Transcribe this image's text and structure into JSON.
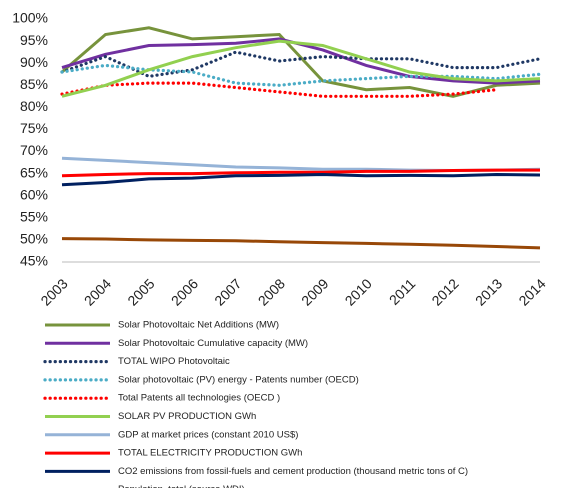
{
  "chart_data": {
    "type": "line",
    "categories": [
      "2003",
      "2004",
      "2005",
      "2006",
      "2007",
      "2008",
      "2009",
      "2010",
      "2011",
      "2012",
      "2013",
      "2014"
    ],
    "ylim": [
      45,
      100
    ],
    "yticks": [
      {
        "value": 45,
        "label": "45%"
      },
      {
        "value": 50,
        "label": "50%"
      },
      {
        "value": 55,
        "label": "55%"
      },
      {
        "value": 60,
        "label": "60%"
      },
      {
        "value": 65,
        "label": "65%"
      },
      {
        "value": 70,
        "label": "70%"
      },
      {
        "value": 75,
        "label": "75%"
      },
      {
        "value": 80,
        "label": "80%"
      },
      {
        "value": 85,
        "label": "85%"
      },
      {
        "value": 90,
        "label": "90%"
      },
      {
        "value": 95,
        "label": "95%"
      },
      {
        "value": 100,
        "label": "100%"
      }
    ],
    "grid": false,
    "series": [
      {
        "name": "Solar Photovoltaic Net Additions (MW)",
        "color": "#77933c",
        "style": "solid",
        "values": [
          88,
          96.5,
          98,
          95.5,
          96,
          96.5,
          86,
          84,
          84.5,
          82.5,
          85,
          85.5
        ]
      },
      {
        "name": "Solar Photovoltaic Cumulative capacity (MW)",
        "color": "#7030a0",
        "style": "solid",
        "values": [
          89,
          92,
          94,
          94.2,
          94.5,
          95.5,
          93,
          89.5,
          87,
          86,
          85.5,
          86
        ]
      },
      {
        "name": "TOTAL WIPO Photovoltaic",
        "color": "#1f3864",
        "style": "dotted",
        "values": [
          88,
          91.5,
          87,
          88.5,
          92.5,
          90.5,
          91.5,
          91,
          91,
          89,
          89,
          91
        ]
      },
      {
        "name": "Solar photovoltaic (PV) energy -  Patents number (OECD)",
        "color": "#4bacc6",
        "style": "dotted",
        "values": [
          88,
          89.5,
          88.5,
          88,
          85.5,
          85,
          86,
          86.5,
          87,
          87,
          86.5,
          87.5
        ]
      },
      {
        "name": "Total Patents all technologies (OECD )",
        "color": "#ff0000",
        "style": "dotted",
        "values": [
          83,
          85,
          85.5,
          85.5,
          84.5,
          83.5,
          82.5,
          82.5,
          82.5,
          83,
          84,
          null
        ]
      },
      {
        "name": "SOLAR PV PRODUCTION GWh",
        "color": "#92d050",
        "style": "solid",
        "values": [
          82.5,
          85,
          88.5,
          91.5,
          93.5,
          95,
          94,
          91,
          88,
          86.5,
          86,
          86.5
        ]
      },
      {
        "name": "GDP at market prices (constant 2010 US$)",
        "color": "#95b3d7",
        "style": "solid",
        "values": [
          68.5,
          68,
          67.5,
          67,
          66.5,
          66.3,
          66,
          66,
          65.8,
          65.7,
          65.8,
          66
        ]
      },
      {
        "name": "TOTAL ELECTRICITY PRODUCTION GWh",
        "color": "#ff0000",
        "style": "solid",
        "values": [
          64.5,
          64.8,
          65,
          65,
          65.2,
          65.3,
          65.3,
          65.5,
          65.5,
          65.7,
          65.8,
          65.8
        ]
      },
      {
        "name": "CO2 emissions from fossil-fuels and cement production (thousand metric tons of C)",
        "color": "#002060",
        "style": "solid",
        "values": [
          62.5,
          63,
          63.8,
          64,
          64.5,
          64.6,
          64.8,
          64.5,
          64.6,
          64.5,
          64.8,
          64.7
        ]
      },
      {
        "name": "Population, total (source WDI)",
        "color": "#984807",
        "style": "solid",
        "values": [
          50.3,
          50.2,
          50,
          49.9,
          49.8,
          49.6,
          49.4,
          49.2,
          49,
          48.8,
          48.5,
          48.2
        ]
      }
    ]
  }
}
